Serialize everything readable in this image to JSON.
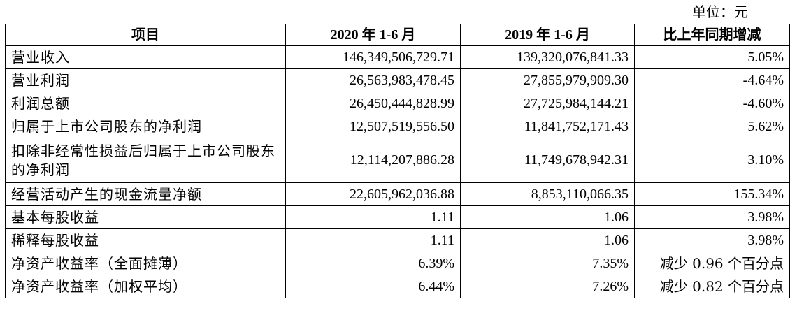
{
  "unit_label": "单位：元",
  "table": {
    "headers": [
      "项目",
      "2020 年 1-6 月",
      "2019 年 1-6 月",
      "比上年同期增减"
    ],
    "rows": [
      {
        "item": "营业收入",
        "y2020": "146,349,506,729.71",
        "y2019": "139,320,076,841.33",
        "change": "5.05%"
      },
      {
        "item": "营业利润",
        "y2020": "26,563,983,478.45",
        "y2019": "27,855,979,909.30",
        "change": "-4.64%"
      },
      {
        "item": "利润总额",
        "y2020": "26,450,444,828.99",
        "y2019": "27,725,984,144.21",
        "change": "-4.60%"
      },
      {
        "item": "归属于上市公司股东的净利润",
        "y2020": "12,507,519,556.50",
        "y2019": "11,841,752,171.43",
        "change": "5.62%"
      },
      {
        "item": "扣除非经常性损益后归属于上市公司股东的净利润",
        "y2020": "12,114,207,886.28",
        "y2019": "11,749,678,942.31",
        "change": "3.10%"
      },
      {
        "item": "经营活动产生的现金流量净额",
        "y2020": "22,605,962,036.88",
        "y2019": "8,853,110,066.35",
        "change": "155.34%"
      },
      {
        "item": "基本每股收益",
        "y2020": "1.11",
        "y2019": "1.06",
        "change": "3.98%"
      },
      {
        "item": "稀释每股收益",
        "y2020": "1.11",
        "y2019": "1.06",
        "change": "3.98%"
      },
      {
        "item": "净资产收益率（全面摊薄）",
        "y2020": "6.39%",
        "y2019": "7.35%",
        "change": "减少 0.96 个百分点"
      },
      {
        "item": "净资产收益率（加权平均）",
        "y2020": "6.44%",
        "y2019": "7.26%",
        "change": "减少 0.82 个百分点"
      }
    ]
  }
}
